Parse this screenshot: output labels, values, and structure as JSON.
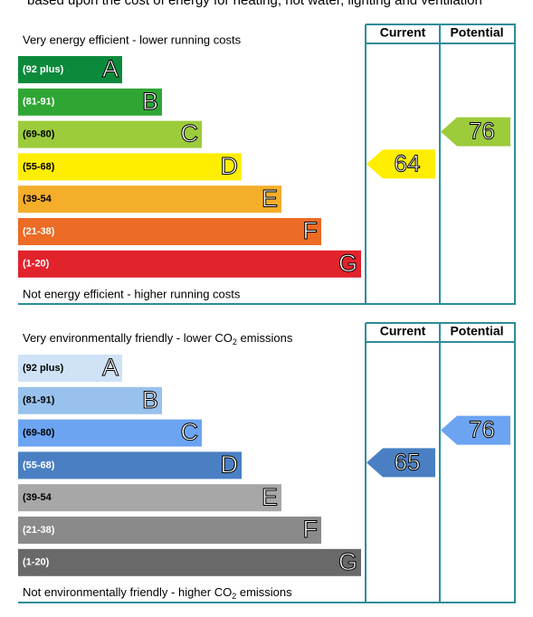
{
  "intro": "based upon the cost of energy for heating, hot water, lighting and ventilation",
  "energy": {
    "top_label": "Very energy efficient - lower running costs",
    "bottom_label": "Not energy efficient - higher running costs",
    "header": {
      "current": "Current",
      "potential": "Potential"
    },
    "bands": [
      {
        "range": "(92 plus)",
        "letter": "A",
        "color": "#0c8a3c"
      },
      {
        "range": "(81-91)",
        "letter": "B",
        "color": "#2fa634"
      },
      {
        "range": "(69-80)",
        "letter": "C",
        "color": "#9ccb3b"
      },
      {
        "range": "(55-68)",
        "letter": "D",
        "color": "#ffee00"
      },
      {
        "range": "(39-54",
        "letter": "E",
        "color": "#f4ae2a"
      },
      {
        "range": "(21-38)",
        "letter": "F",
        "color": "#ec6b25"
      },
      {
        "range": "(1-20)",
        "letter": "G",
        "color": "#e1232b"
      }
    ],
    "current": {
      "value": 64,
      "color": "#ffee00"
    },
    "potential": {
      "value": 76,
      "color": "#9ccb3b"
    }
  },
  "environment": {
    "top_label": {
      "text": "Very environmentally friendly - lower CO",
      "sub": "2",
      "tail": " emissions"
    },
    "bottom_label": {
      "text": "Not environmentally friendly - higher CO",
      "sub": "2",
      "tail": " emissions"
    },
    "header": {
      "current": "Current",
      "potential": "Potential"
    },
    "bands": [
      {
        "range": "(92 plus)",
        "letter": "A",
        "color": "#cfe2f6"
      },
      {
        "range": "(81-91)",
        "letter": "B",
        "color": "#98c1ed"
      },
      {
        "range": "(69-80)",
        "letter": "C",
        "color": "#6ca4f2"
      },
      {
        "range": "(55-68)",
        "letter": "D",
        "color": "#4a80c3"
      },
      {
        "range": "(39-54",
        "letter": "E",
        "color": "#a7a7a7"
      },
      {
        "range": "(21-38)",
        "letter": "F",
        "color": "#8a8a8a"
      },
      {
        "range": "(1-20)",
        "letter": "G",
        "color": "#696969"
      }
    ],
    "current": {
      "value": 65,
      "color": "#4a80c3"
    },
    "potential": {
      "value": 76,
      "color": "#6ca4f2"
    }
  }
}
